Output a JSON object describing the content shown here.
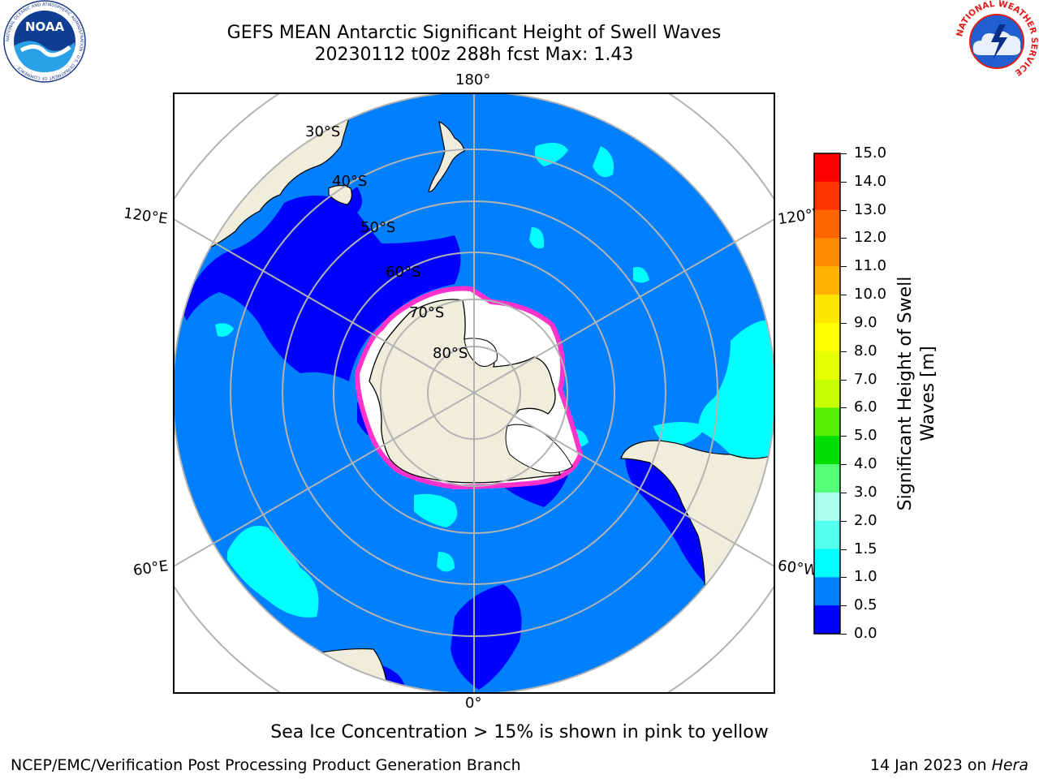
{
  "title": {
    "line1": "GEFS MEAN Antarctic Significant Height of Swell Waves",
    "line2": "20230112 t00z 288h fcst   Max: 1.43"
  },
  "longitude_labels": {
    "top": "180°",
    "bottom": "0°",
    "upper_left": "120°E",
    "upper_right": "120°W",
    "lower_left": "60°E",
    "lower_right": "60°W"
  },
  "latitude_labels": [
    "30°S",
    "40°S",
    "50°S",
    "60°S",
    "70°S",
    "80°S"
  ],
  "colorbar": {
    "label": "Significant Height of Swell Waves [m]",
    "ticks": [
      "15.0",
      "14.0",
      "13.0",
      "12.0",
      "11.0",
      "10.0",
      "9.0",
      "8.0",
      "7.0",
      "6.0",
      "5.0",
      "4.0",
      "3.0",
      "2.0",
      "1.5",
      "1.0",
      "0.5",
      "0.0"
    ],
    "colors": [
      "#ff0000",
      "#ff3300",
      "#ff6600",
      "#ff8c00",
      "#ffb300",
      "#ffe600",
      "#ffff00",
      "#e6ff00",
      "#c8ff00",
      "#55ee00",
      "#00dd00",
      "#55ff77",
      "#aaffee",
      "#55ffee",
      "#00ffff",
      "#0080ff",
      "#0000ff"
    ]
  },
  "colors": {
    "ocean_low": "#0080ff",
    "ocean_lowest": "#0000ff",
    "ocean_cyan": "#00ffff",
    "land": "#efeedc",
    "grid": "#b3b3b3",
    "ice_edge": "#ff33cc"
  },
  "caption": "Sea Ice Concentration > 15% is shown in pink to yellow",
  "footer": {
    "left": "NCEP/EMC/Verification Post Processing Product Generation Branch",
    "right_prefix": "14 Jan 2023 on ",
    "right_host": "Hera"
  },
  "logos": {
    "noaa_text": "NOAA",
    "noaa_ring": "NATIONAL OCEANIC AND ATMOSPHERIC ADMINISTRATION · U.S. DEPARTMENT OF COMMERCE",
    "nws_ring": "NATIONAL WEATHER SERVICE"
  }
}
